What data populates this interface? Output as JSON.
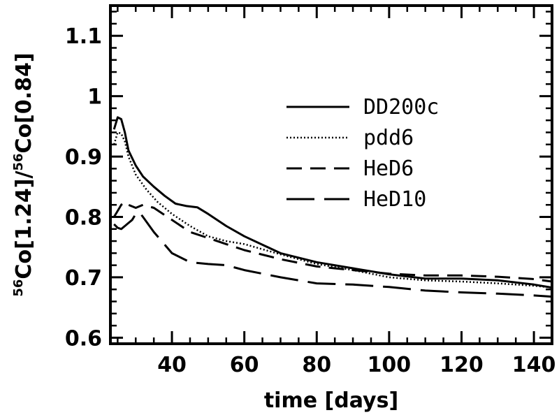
{
  "chart_data": {
    "type": "line",
    "title": "",
    "xlabel": "time [days]",
    "ylabel": {
      "num_sup": "56",
      "num_main": "Co[1.24]",
      "sep": "/",
      "den_sup": "56",
      "den_main": "Co[0.84]"
    },
    "xlim": [
      23,
      145
    ],
    "ylim": [
      0.59,
      1.15
    ],
    "xticks": [
      40,
      60,
      80,
      100,
      120,
      140
    ],
    "xtick_labels": [
      "40",
      "60",
      "80",
      "100",
      "120",
      "140"
    ],
    "yticks": [
      0.6,
      0.7,
      0.8,
      0.9,
      1.0,
      1.1
    ],
    "ytick_labels": [
      "0.6",
      "0.7",
      "0.8",
      "0.9",
      "1",
      "1.1"
    ],
    "grid": false,
    "legend_position": "top-right",
    "series": [
      {
        "name": "DD200c",
        "style": "solid",
        "x": [
          24,
          25,
          26,
          27,
          28,
          30,
          32,
          35,
          38,
          41,
          44,
          47,
          50,
          55,
          60,
          70,
          80,
          90,
          100,
          110,
          120,
          130,
          140,
          145
        ],
        "y": [
          0.945,
          0.965,
          0.962,
          0.94,
          0.91,
          0.885,
          0.867,
          0.85,
          0.835,
          0.822,
          0.818,
          0.816,
          0.805,
          0.785,
          0.768,
          0.74,
          0.725,
          0.715,
          0.705,
          0.698,
          0.698,
          0.695,
          0.688,
          0.683
        ]
      },
      {
        "name": "pdd6",
        "style": "dotted",
        "x": [
          24,
          25,
          26,
          27,
          28,
          30,
          33,
          36,
          40,
          45,
          50,
          55,
          60,
          70,
          80,
          90,
          100,
          110,
          120,
          130,
          140,
          145
        ],
        "y": [
          0.92,
          0.94,
          0.938,
          0.925,
          0.9,
          0.87,
          0.845,
          0.825,
          0.805,
          0.785,
          0.768,
          0.76,
          0.755,
          0.738,
          0.722,
          0.712,
          0.7,
          0.695,
          0.693,
          0.69,
          0.686,
          0.683
        ]
      },
      {
        "name": "HeD6",
        "style": "dashed",
        "x": [
          24,
          25,
          26,
          27,
          28,
          30,
          32,
          35,
          40,
          45,
          50,
          55,
          60,
          70,
          80,
          90,
          100,
          110,
          120,
          130,
          140,
          145
        ],
        "y": [
          0.8,
          0.81,
          0.82,
          0.825,
          0.82,
          0.815,
          0.82,
          0.815,
          0.795,
          0.775,
          0.765,
          0.755,
          0.745,
          0.73,
          0.718,
          0.712,
          0.706,
          0.703,
          0.703,
          0.701,
          0.697,
          0.693
        ]
      },
      {
        "name": "HeD10",
        "style": "longdash",
        "x": [
          24,
          25,
          26,
          27,
          28,
          29,
          30,
          31,
          32,
          35,
          40,
          45,
          50,
          55,
          60,
          70,
          80,
          90,
          100,
          110,
          120,
          130,
          140,
          145
        ],
        "y": [
          0.788,
          0.782,
          0.78,
          0.785,
          0.79,
          0.795,
          0.805,
          0.808,
          0.8,
          0.775,
          0.74,
          0.725,
          0.722,
          0.72,
          0.712,
          0.7,
          0.69,
          0.688,
          0.684,
          0.678,
          0.675,
          0.673,
          0.67,
          0.668
        ]
      }
    ]
  }
}
